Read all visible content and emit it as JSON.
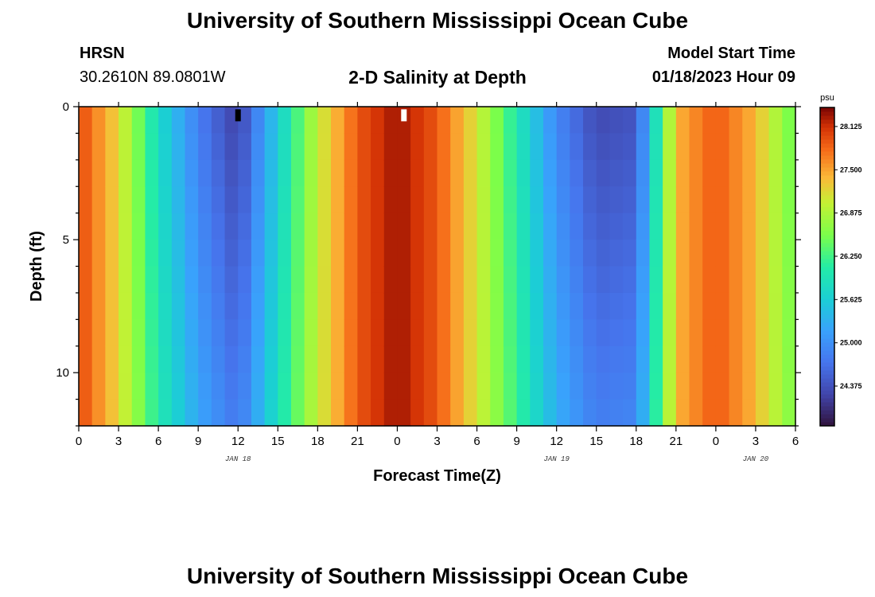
{
  "header": {
    "title": "University of Southern Mississippi Ocean Cube",
    "station": "HRSN",
    "coordinates": "30.2610N  89.0801W",
    "subtitle": "2-D Salinity at Depth",
    "model_start_label": "Model Start Time",
    "model_start_value": "01/18/2023 Hour 09"
  },
  "footer": {
    "title": "University of Southern Mississippi Ocean Cube"
  },
  "chart_data": {
    "type": "heatmap",
    "title": "2-D Salinity at Depth",
    "xlabel": "Forecast Time(Z)",
    "ylabel": "Depth (ft)",
    "x_range_hours": [
      0,
      54
    ],
    "y_range_ft": [
      0,
      12
    ],
    "x_tick_labels": [
      "0",
      "3",
      "6",
      "9",
      "12",
      "15",
      "18",
      "21",
      "0",
      "3",
      "6",
      "9",
      "12",
      "15",
      "18",
      "21",
      "0",
      "3",
      "6"
    ],
    "y_ticks": [
      0,
      5,
      10
    ],
    "date_labels": [
      {
        "text": "JAN 18",
        "hour": 12
      },
      {
        "text": "JAN 19",
        "hour": 36
      },
      {
        "text": "JAN 20",
        "hour": 51
      }
    ],
    "colorbar": {
      "unit": "psu",
      "min": 23.8,
      "max": 28.4,
      "tick_labels": [
        "28.125",
        "27.500",
        "26.875",
        "26.250",
        "25.625",
        "25.000",
        "24.375"
      ],
      "tick_values": [
        28.125,
        27.5,
        26.875,
        26.25,
        25.625,
        25.0,
        24.375
      ]
    },
    "markers": [
      {
        "hour": 12,
        "depth_from": 0.1,
        "depth_to": 0.55,
        "color": "#000000"
      },
      {
        "hour": 24.5,
        "depth_from": 0.1,
        "depth_to": 0.55,
        "color": "#ffffff"
      }
    ],
    "surface_salinity_samples": [
      {
        "hour": 0,
        "salinity": 28.0
      },
      {
        "hour": 3,
        "salinity": 27.2
      },
      {
        "hour": 6,
        "salinity": 25.8
      },
      {
        "hour": 9,
        "salinity": 24.8
      },
      {
        "hour": 12,
        "salinity": 24.2
      },
      {
        "hour": 15,
        "salinity": 25.6
      },
      {
        "hour": 18,
        "salinity": 27.0
      },
      {
        "hour": 21,
        "salinity": 27.9
      },
      {
        "hour": 24,
        "salinity": 28.3
      },
      {
        "hour": 27,
        "salinity": 27.9
      },
      {
        "hour": 30,
        "salinity": 27.1
      },
      {
        "hour": 33,
        "salinity": 26.0
      },
      {
        "hour": 36,
        "salinity": 24.9
      },
      {
        "hour": 39,
        "salinity": 24.3
      },
      {
        "hour": 42,
        "salinity": 24.4
      },
      {
        "hour": 45,
        "salinity": 27.4
      },
      {
        "hour": 48,
        "salinity": 27.9
      },
      {
        "hour": 51,
        "salinity": 27.4
      },
      {
        "hour": 54,
        "salinity": 26.4
      }
    ]
  }
}
